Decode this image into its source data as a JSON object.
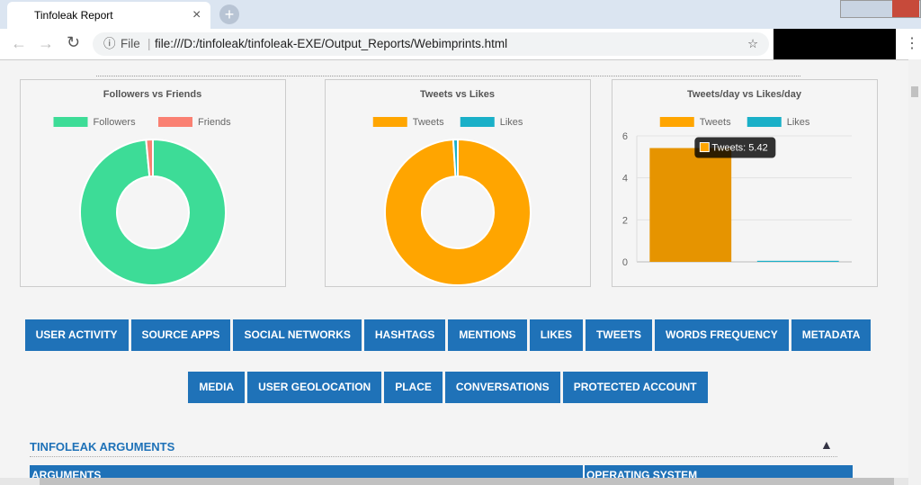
{
  "browser": {
    "tab_title": "Tinfoleak Report",
    "address_prefix": "File",
    "url": "file:///D:/tinfoleak/tinfoleak-EXE/Output_Reports/Webimprints.html"
  },
  "chart_data": [
    {
      "type": "donut",
      "title": "Followers vs Friends",
      "categories": [
        "Followers",
        "Friends"
      ],
      "values": [
        98.5,
        1.5
      ],
      "colors": [
        "#3ddc97",
        "#fa8072"
      ]
    },
    {
      "type": "donut",
      "title": "Tweets vs Likes",
      "categories": [
        "Tweets",
        "Likes"
      ],
      "values": [
        99,
        1
      ],
      "colors": [
        "#ffa500",
        "#1ab0c8"
      ]
    },
    {
      "type": "bar",
      "title": "Tweets/day vs Likes/day",
      "categories": [
        "Tweets",
        "Likes"
      ],
      "values": [
        5.42,
        0.05
      ],
      "colors": [
        "#ffa500",
        "#1ab0c8"
      ],
      "ylim": [
        0,
        6
      ],
      "yticks": [
        0,
        2,
        4,
        6
      ],
      "grid": true,
      "tooltip": "Tweets: 5.42"
    }
  ],
  "buttons": [
    [
      "USER ACTIVITY",
      "SOURCE APPS",
      "SOCIAL NETWORKS",
      "HASHTAGS",
      "MENTIONS",
      "LIKES",
      "TWEETS",
      "WORDS FREQUENCY",
      "METADATA"
    ],
    [
      "MEDIA",
      "USER GEOLOCATION",
      "PLACE",
      "CONVERSATIONS",
      "PROTECTED ACCOUNT"
    ]
  ],
  "section": {
    "title": "TINFOLEAK ARGUMENTS",
    "table_headers": [
      "ARGUMENTS",
      "OPERATING SYSTEM"
    ]
  }
}
